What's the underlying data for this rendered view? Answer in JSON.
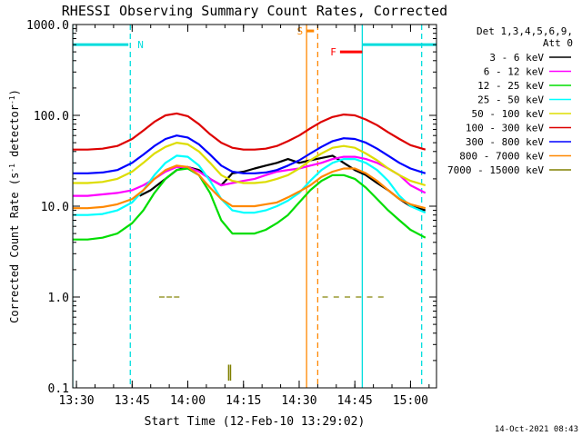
{
  "chart_data": {
    "type": "line",
    "title": "RHESSI Observing Summary Count Rates, Corrected",
    "xlabel": "Start Time (12-Feb-10 13:29:02)",
    "ylabel_main": "Corrected Count Rate (s",
    "ylabel_sup1": "-1",
    "ylabel_mid": " detector",
    "ylabel_sup2": "-1",
    "ylabel_end": ")",
    "yscale": "log",
    "xlim": [
      "13:29",
      "15:07"
    ],
    "ylim": [
      0.1,
      1000
    ],
    "xticks": [
      "13:30",
      "13:45",
      "14:00",
      "14:15",
      "14:30",
      "14:45",
      "15:00"
    ],
    "yticks": [
      "0.1",
      "1.0",
      "10.0",
      "100.0",
      "1000.0"
    ],
    "legend": {
      "header1": "Det 1,3,4,5,6,9,",
      "header2": "Att 0",
      "entries": [
        {
          "label": "3 - 6 keV",
          "color": "#000000"
        },
        {
          "label": "6 - 12 keV",
          "color": "#ff00ff"
        },
        {
          "label": "12 - 25 keV",
          "color": "#00dd00"
        },
        {
          "label": "25 - 50 keV",
          "color": "#00ffff"
        },
        {
          "label": "50 - 100 keV",
          "color": "#dddd00"
        },
        {
          "label": "100 - 300 keV",
          "color": "#dd0000"
        },
        {
          "label": "300 - 800 keV",
          "color": "#0000ff"
        },
        {
          "label": "800 - 7000 keV",
          "color": "#ff8800"
        },
        {
          "label": "7000 - 15000 keV",
          "color": "#808000"
        }
      ]
    },
    "series": [
      {
        "name": "3 - 6 keV",
        "color": "#000000",
        "x": [
          "13:47",
          "13:50",
          "13:54",
          "13:57",
          "14:00",
          "14:03",
          "14:06",
          "14:09",
          "14:12",
          "14:15",
          "14:18",
          "14:21",
          "14:24",
          "14:27",
          "14:30",
          "14:33",
          "14:36",
          "14:39",
          "14:42",
          "14:45",
          "14:48",
          "14:51",
          "14:54",
          "14:57",
          "15:00",
          "15:04"
        ],
        "y": [
          13,
          15,
          20,
          25,
          27,
          25,
          20,
          17,
          23,
          24,
          26,
          28,
          30,
          33,
          30,
          32,
          34,
          36,
          30,
          25,
          22,
          18,
          15,
          12,
          10,
          9
        ]
      },
      {
        "name": "6 - 12 keV",
        "color": "#ff00ff",
        "x": [
          "13:29",
          "13:33",
          "13:37",
          "13:41",
          "13:45",
          "13:48",
          "13:51",
          "13:54",
          "13:57",
          "14:00",
          "14:03",
          "14:06",
          "14:09",
          "14:12",
          "14:15",
          "14:18",
          "14:21",
          "14:24",
          "14:27",
          "14:30",
          "14:33",
          "14:36",
          "14:39",
          "14:42",
          "14:45",
          "14:48",
          "14:51",
          "14:54",
          "14:57",
          "15:00",
          "15:04"
        ],
        "y": [
          13,
          13,
          13.5,
          14,
          15,
          17,
          20,
          24,
          27,
          27,
          24,
          20,
          17,
          18,
          19,
          20,
          22,
          24,
          25,
          26,
          28,
          30,
          33,
          35,
          35,
          33,
          30,
          26,
          22,
          17,
          14
        ]
      },
      {
        "name": "12 - 25 keV",
        "color": "#00dd00",
        "x": [
          "13:29",
          "13:33",
          "13:37",
          "13:41",
          "13:45",
          "13:48",
          "13:51",
          "13:54",
          "13:57",
          "14:00",
          "14:03",
          "14:06",
          "14:09",
          "14:12",
          "14:15",
          "14:18",
          "14:21",
          "14:24",
          "14:27",
          "14:30",
          "14:33",
          "14:36",
          "14:39",
          "14:42",
          "14:45",
          "14:48",
          "14:51",
          "14:54",
          "14:57",
          "15:00",
          "15:04"
        ],
        "y": [
          4.3,
          4.3,
          4.5,
          5,
          6.5,
          9,
          14,
          20,
          25,
          26,
          22,
          14,
          7,
          5,
          5,
          5,
          5.5,
          6.5,
          8,
          11,
          15,
          19,
          22,
          22,
          20,
          16,
          12,
          9,
          7,
          5.5,
          4.5
        ]
      },
      {
        "name": "25 - 50 keV",
        "color": "#00ffff",
        "x": [
          "13:29",
          "13:33",
          "13:37",
          "13:41",
          "13:45",
          "13:48",
          "13:51",
          "13:54",
          "13:57",
          "14:00",
          "14:03",
          "14:06",
          "14:09",
          "14:12",
          "14:15",
          "14:18",
          "14:21",
          "14:24",
          "14:27",
          "14:30",
          "14:33",
          "14:36",
          "14:39",
          "14:42",
          "14:45",
          "14:48",
          "14:51",
          "14:54",
          "14:57",
          "15:00",
          "15:04"
        ],
        "y": [
          8,
          8,
          8.2,
          9,
          11,
          15,
          22,
          30,
          36,
          35,
          28,
          19,
          12,
          9,
          8.5,
          8.5,
          9,
          10,
          11.5,
          14,
          19,
          25,
          30,
          33,
          33,
          30,
          25,
          19,
          13,
          10,
          8.5
        ]
      },
      {
        "name": "50 - 100 keV",
        "color": "#dddd00",
        "x": [
          "13:29",
          "13:33",
          "13:37",
          "13:41",
          "13:45",
          "13:48",
          "13:51",
          "13:54",
          "13:57",
          "14:00",
          "14:03",
          "14:06",
          "14:09",
          "14:12",
          "14:15",
          "14:18",
          "14:21",
          "14:24",
          "14:27",
          "14:30",
          "14:33",
          "14:36",
          "14:39",
          "14:42",
          "14:45",
          "14:48",
          "14:51",
          "14:54",
          "14:57",
          "15:00",
          "15:04"
        ],
        "y": [
          18,
          18,
          18.5,
          20,
          24,
          30,
          38,
          45,
          50,
          48,
          40,
          30,
          22,
          19,
          18,
          18,
          18.5,
          20,
          22,
          26,
          32,
          38,
          44,
          46,
          44,
          38,
          32,
          26,
          22,
          19,
          17
        ]
      },
      {
        "name": "100 - 300 keV",
        "color": "#dd0000",
        "x": [
          "13:29",
          "13:33",
          "13:37",
          "13:41",
          "13:45",
          "13:48",
          "13:51",
          "13:54",
          "13:57",
          "14:00",
          "14:03",
          "14:06",
          "14:09",
          "14:12",
          "14:15",
          "14:18",
          "14:21",
          "14:24",
          "14:27",
          "14:30",
          "14:33",
          "14:36",
          "14:39",
          "14:42",
          "14:45",
          "14:48",
          "14:51",
          "14:54",
          "14:57",
          "15:00",
          "15:04"
        ],
        "y": [
          42,
          42,
          43,
          46,
          55,
          68,
          85,
          100,
          105,
          98,
          80,
          62,
          50,
          44,
          42,
          42,
          43,
          46,
          52,
          60,
          72,
          85,
          96,
          102,
          100,
          90,
          78,
          65,
          55,
          47,
          42
        ]
      },
      {
        "name": "300 - 800 keV",
        "color": "#0000ff",
        "x": [
          "13:29",
          "13:33",
          "13:37",
          "13:41",
          "13:45",
          "13:48",
          "13:51",
          "13:54",
          "13:57",
          "14:00",
          "14:03",
          "14:06",
          "14:09",
          "14:12",
          "14:15",
          "14:18",
          "14:21",
          "14:24",
          "14:27",
          "14:30",
          "14:33",
          "14:36",
          "14:39",
          "14:42",
          "14:45",
          "14:48",
          "14:51",
          "14:54",
          "14:57",
          "15:00",
          "15:04"
        ],
        "y": [
          23,
          23,
          23.5,
          25,
          30,
          37,
          46,
          55,
          60,
          57,
          48,
          37,
          28,
          24,
          23,
          23,
          23.5,
          25,
          28,
          32,
          38,
          45,
          52,
          56,
          55,
          50,
          43,
          36,
          30,
          26,
          23
        ]
      },
      {
        "name": "800 - 7000 keV",
        "color": "#ff8800",
        "x": [
          "13:29",
          "13:33",
          "13:37",
          "13:41",
          "13:45",
          "13:48",
          "13:51",
          "13:54",
          "13:57",
          "14:00",
          "14:03",
          "14:06",
          "14:09",
          "14:12",
          "14:15",
          "14:18",
          "14:21",
          "14:24",
          "14:27",
          "14:30",
          "14:33",
          "14:36",
          "14:39",
          "14:42",
          "14:45",
          "14:48",
          "14:51",
          "14:54",
          "14:57",
          "15:00",
          "15:04"
        ],
        "y": [
          9.5,
          9.5,
          9.8,
          10.5,
          12,
          15,
          20,
          25,
          28,
          27,
          22,
          16,
          12,
          10,
          10,
          10,
          10.5,
          11,
          12.5,
          14.5,
          17,
          21,
          24,
          26,
          26,
          23,
          19,
          15,
          12,
          10.5,
          9.5
        ]
      },
      {
        "name": "7000 - 15000 keV",
        "color": "#808000",
        "x": [
          "13:53",
          "13:55",
          "13:57",
          "14:11",
          "14:11.5",
          "14:37",
          "14:40",
          "14:43",
          "14:46",
          "14:49",
          "14:52"
        ],
        "y": [
          1.0,
          1.0,
          1.0,
          0.12,
          0.18,
          1.0,
          1.0,
          1.0,
          1.0,
          1.0,
          1.0
        ]
      }
    ],
    "annotations": [
      {
        "label": "N",
        "color": "#00dddd",
        "bar_x": [
          "13:29",
          "13:44"
        ],
        "bar_y": 600
      },
      {
        "label": "N",
        "color": "#00dddd",
        "bar_x": [
          "14:47",
          "15:07"
        ],
        "bar_y": 600
      },
      {
        "label": "S",
        "color": "#ff8800",
        "bar_x": [
          "14:32",
          "14:34"
        ],
        "bar_y": 850
      },
      {
        "label": "F",
        "color": "#ff0000",
        "bar_x": [
          "14:41",
          "14:47"
        ],
        "bar_y": 500
      }
    ],
    "vlines": [
      {
        "x": "13:29",
        "color": "#00dddd",
        "style": "solid"
      },
      {
        "x": "13:44.5",
        "color": "#00dddd",
        "style": "dashed"
      },
      {
        "x": "14:47",
        "color": "#00dddd",
        "style": "solid"
      },
      {
        "x": "15:03",
        "color": "#00dddd",
        "style": "dashed"
      },
      {
        "x": "14:32",
        "color": "#ff8800",
        "style": "solid"
      },
      {
        "x": "14:35",
        "color": "#ff8800",
        "style": "dashed"
      }
    ],
    "footer": "14-Oct-2021 08:43"
  }
}
